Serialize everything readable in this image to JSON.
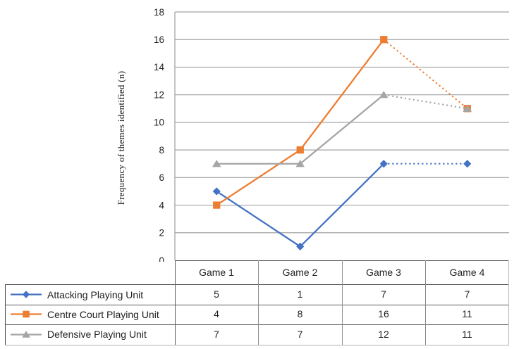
{
  "chart_data": {
    "type": "line",
    "title": "",
    "xlabel": "",
    "ylabel": "Frequency of themes  identified (n)",
    "ylim": [
      0,
      18
    ],
    "yticks": [
      18,
      16,
      14,
      12,
      10,
      8,
      6,
      4,
      2,
      0
    ],
    "categories": [
      "Game 1",
      "Game 2",
      "Game 3",
      "Game 4"
    ],
    "grid": "horizontal",
    "legend_position": "table-left",
    "gridline_color": "#a3a3a3",
    "axis_color": "#9d9d9d",
    "series": [
      {
        "name": "Attacking Playing Unit",
        "marker": "diamond",
        "color": "#4472C4",
        "values": [
          5,
          1,
          7,
          7
        ],
        "last_segment_dotted": true
      },
      {
        "name": "Centre Court Playing Unit",
        "marker": "square",
        "color": "#ED7D31",
        "values": [
          4,
          8,
          16,
          11
        ],
        "last_segment_dotted": true
      },
      {
        "name": "Defensive Playing Unit",
        "marker": "triangle",
        "color": "#A5A5A5",
        "values": [
          7,
          7,
          12,
          11
        ],
        "last_segment_dotted": true
      }
    ]
  }
}
